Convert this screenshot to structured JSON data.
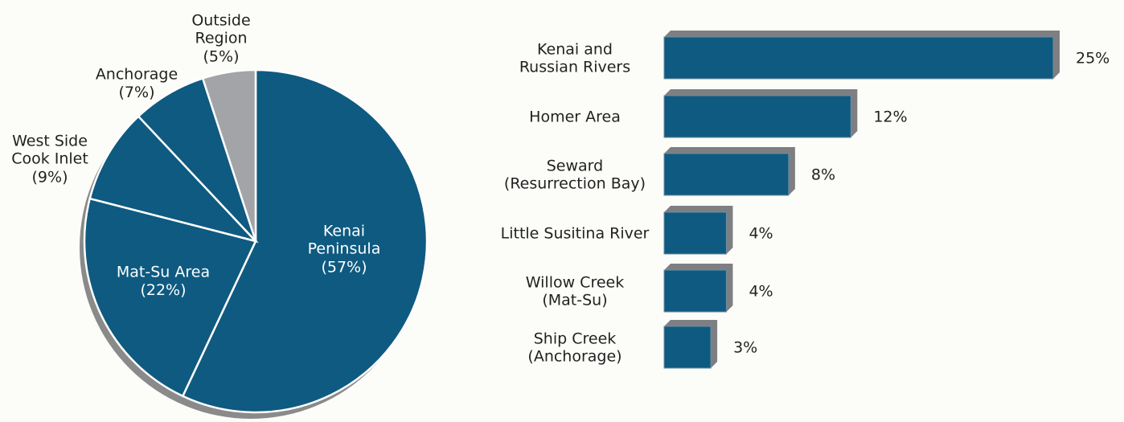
{
  "chart_data": [
    {
      "type": "pie",
      "categories": [
        "Kenai\nPeninsula",
        "Mat-Su Area",
        "West Side\nCook Inlet",
        "Anchorage",
        "Outside\nRegion"
      ],
      "values": [
        57,
        22,
        9,
        7,
        5
      ],
      "value_labels": [
        "(57%)",
        "(22%)",
        "(9%)",
        "(7%)",
        "(5%)"
      ],
      "colors": [
        "#0f5a80",
        "#0f5a80",
        "#0f5a80",
        "#0f5a80",
        "#a2a4a7"
      ]
    },
    {
      "type": "bar",
      "categories": [
        "Kenai and\nRussian Rivers",
        "Homer Area",
        "Seward\n(Resurrection Bay)",
        "Little Susitina River",
        "Willow Creek\n(Mat-Su)",
        "Ship Creek\n(Anchorage)"
      ],
      "values": [
        25,
        12,
        8,
        4,
        4,
        3
      ],
      "value_labels": [
        "25%",
        "12%",
        "8%",
        "4%",
        "4%",
        "3%"
      ],
      "color": "#0f5a80"
    }
  ]
}
